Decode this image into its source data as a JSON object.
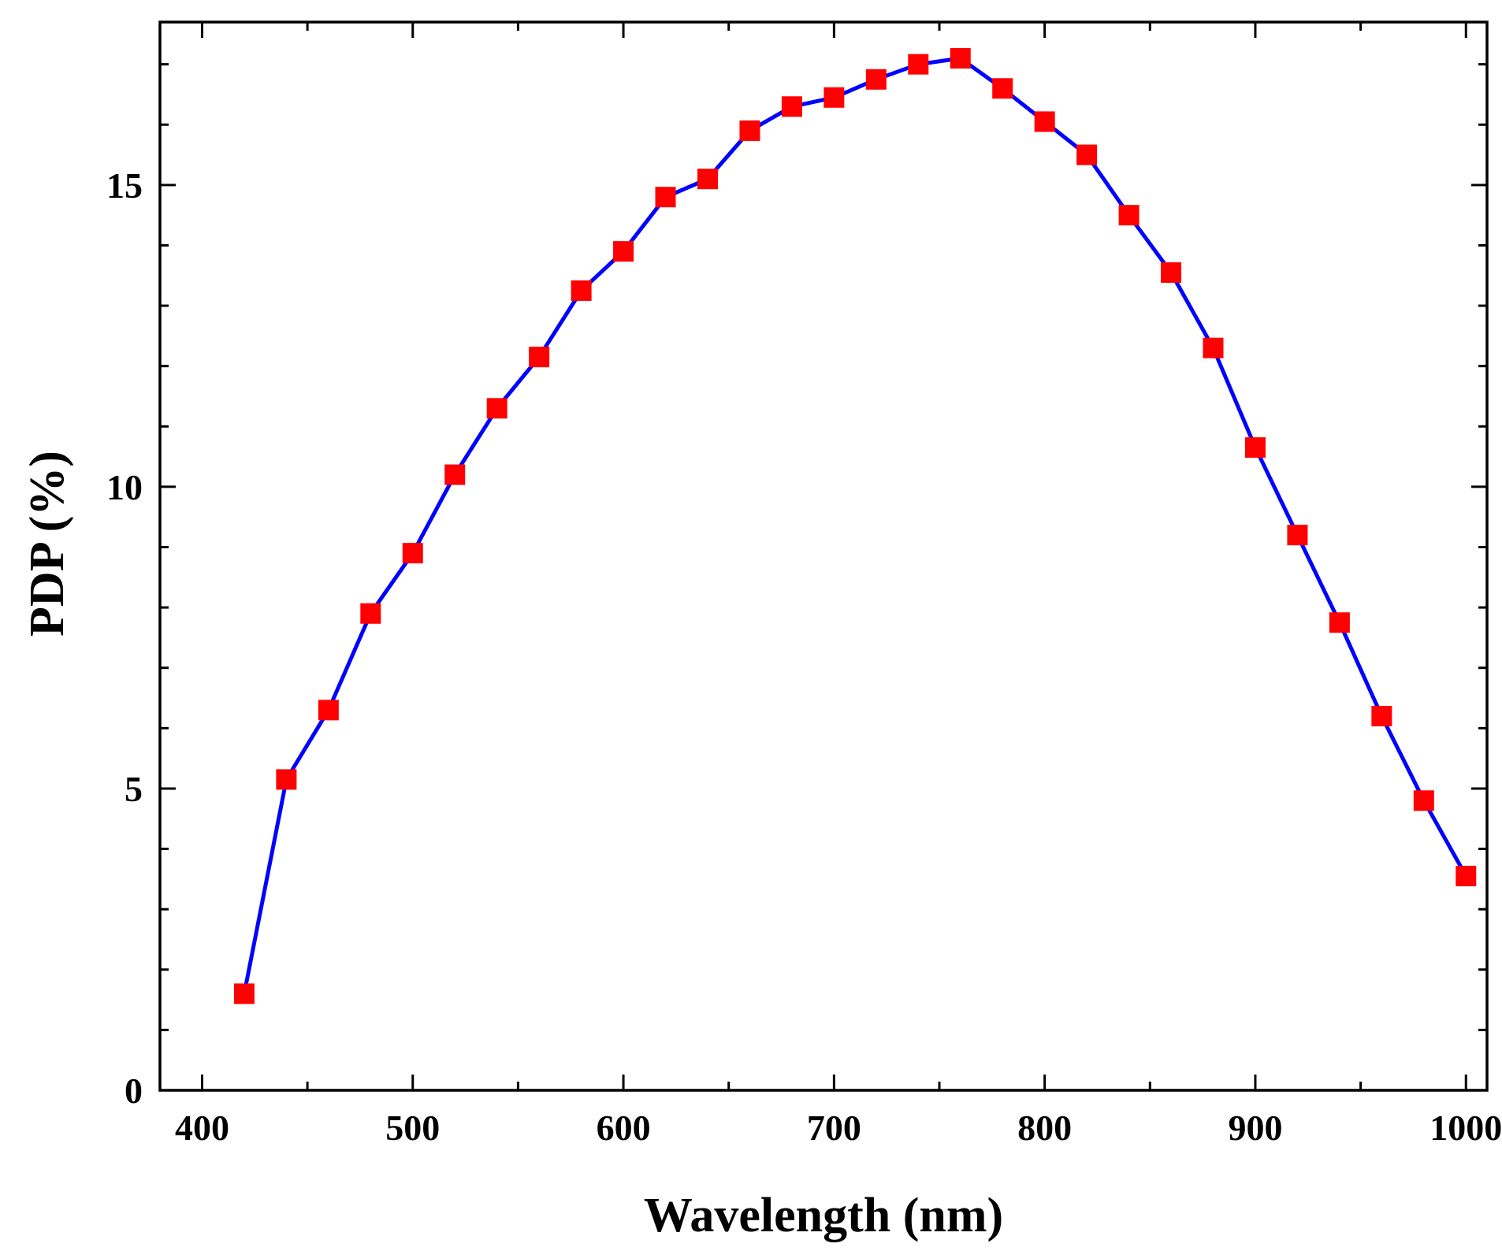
{
  "chart_data": {
    "type": "line",
    "title": "",
    "xlabel": "Wavelength (nm)",
    "ylabel": "PDP (%)",
    "xlim": [
      380,
      1010
    ],
    "ylim": [
      0,
      17.7
    ],
    "x_ticks": [
      400,
      500,
      600,
      700,
      800,
      900,
      1000
    ],
    "x_tick_labels": [
      "400",
      "500",
      "600",
      "700",
      "800",
      "900",
      "1000"
    ],
    "x_minor_step": 50,
    "y_ticks": [
      0,
      5,
      10,
      15
    ],
    "y_tick_labels": [
      "0",
      "5",
      "10",
      "15"
    ],
    "y_minor_step": 1,
    "grid": false,
    "series": [
      {
        "name": "PDP",
        "line_color": "#0000ff",
        "marker": "square",
        "marker_color": "#ff0000",
        "x": [
          420,
          440,
          460,
          480,
          500,
          520,
          540,
          560,
          580,
          600,
          620,
          640,
          660,
          680,
          700,
          720,
          740,
          760,
          780,
          800,
          820,
          840,
          860,
          880,
          900,
          920,
          940,
          960,
          980,
          1000
        ],
        "y": [
          1.6,
          5.15,
          6.3,
          7.9,
          8.9,
          10.2,
          11.3,
          12.15,
          13.25,
          13.9,
          14.8,
          15.1,
          15.9,
          16.3,
          16.45,
          16.75,
          17.0,
          17.1,
          16.6,
          16.05,
          15.5,
          14.5,
          13.55,
          12.3,
          10.65,
          9.2,
          7.75,
          6.2,
          4.8,
          3.55
        ]
      }
    ]
  }
}
